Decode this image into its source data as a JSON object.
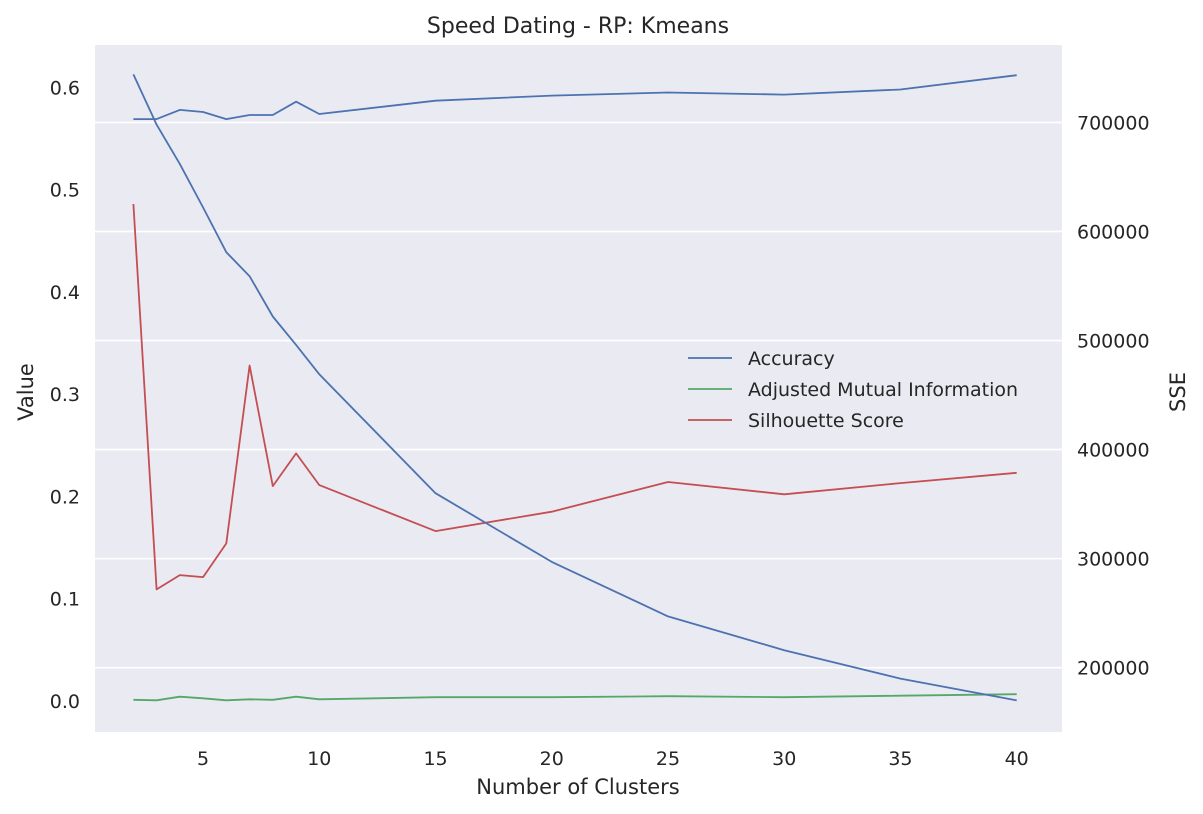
{
  "chart_data": {
    "type": "line",
    "title": "Speed Dating - RP: Kmeans",
    "xlabel": "Number of Clusters",
    "ylabel": "Value",
    "y2label": "SSE",
    "x": [
      2,
      3,
      4,
      5,
      6,
      7,
      8,
      9,
      10,
      15,
      20,
      25,
      30,
      35,
      40
    ],
    "xticks": [
      5,
      10,
      15,
      20,
      25,
      30,
      35,
      40
    ],
    "xlim": [
      0.35,
      41.95
    ],
    "yticks": [
      0.0,
      0.1,
      0.2,
      0.3,
      0.4,
      0.5,
      0.6
    ],
    "yticklabels": [
      "0.0",
      "0.1",
      "0.2",
      "0.3",
      "0.4",
      "0.5",
      "0.6"
    ],
    "ylim": [
      -0.0305,
      0.6415
    ],
    "y2ticks": [
      200000,
      300000,
      400000,
      500000,
      600000,
      700000
    ],
    "y2ticklabels": [
      "200000",
      "300000",
      "400000",
      "500000",
      "600000",
      "700000"
    ],
    "y2lim": [
      141000,
      771000
    ],
    "grid": true,
    "legend_position": "center-right",
    "series": [
      {
        "name": "Accuracy",
        "axis": "left",
        "color": "#4c72b0",
        "values": [
          0.569,
          0.569,
          0.578,
          0.576,
          0.569,
          0.573,
          0.573,
          0.586,
          0.574,
          0.587,
          0.592,
          0.595,
          0.593,
          0.598,
          0.612
        ]
      },
      {
        "name": "Adjusted Mutual Information",
        "axis": "left",
        "color": "#55a868",
        "values": [
          0.001,
          0.0005,
          0.004,
          0.0025,
          0.0005,
          0.0015,
          0.001,
          0.004,
          0.0015,
          0.0035,
          0.0035,
          0.0045,
          0.0035,
          0.005,
          0.0065
        ]
      },
      {
        "name": "Silhouette Score",
        "axis": "left",
        "color": "#c44e52",
        "values": [
          0.486,
          0.109,
          0.123,
          0.121,
          0.154,
          0.328,
          0.21,
          0.242,
          0.211,
          0.166,
          0.185,
          0.214,
          0.202,
          0.213,
          0.223
        ]
      },
      {
        "name": "SSE",
        "axis": "right",
        "color": "#4c72b0",
        "legend": false,
        "values": [
          744000,
          698000,
          662000,
          622000,
          581000,
          559000,
          522000,
          496000,
          469000,
          360000,
          297000,
          247000,
          216000,
          190000,
          170000
        ]
      }
    ]
  }
}
